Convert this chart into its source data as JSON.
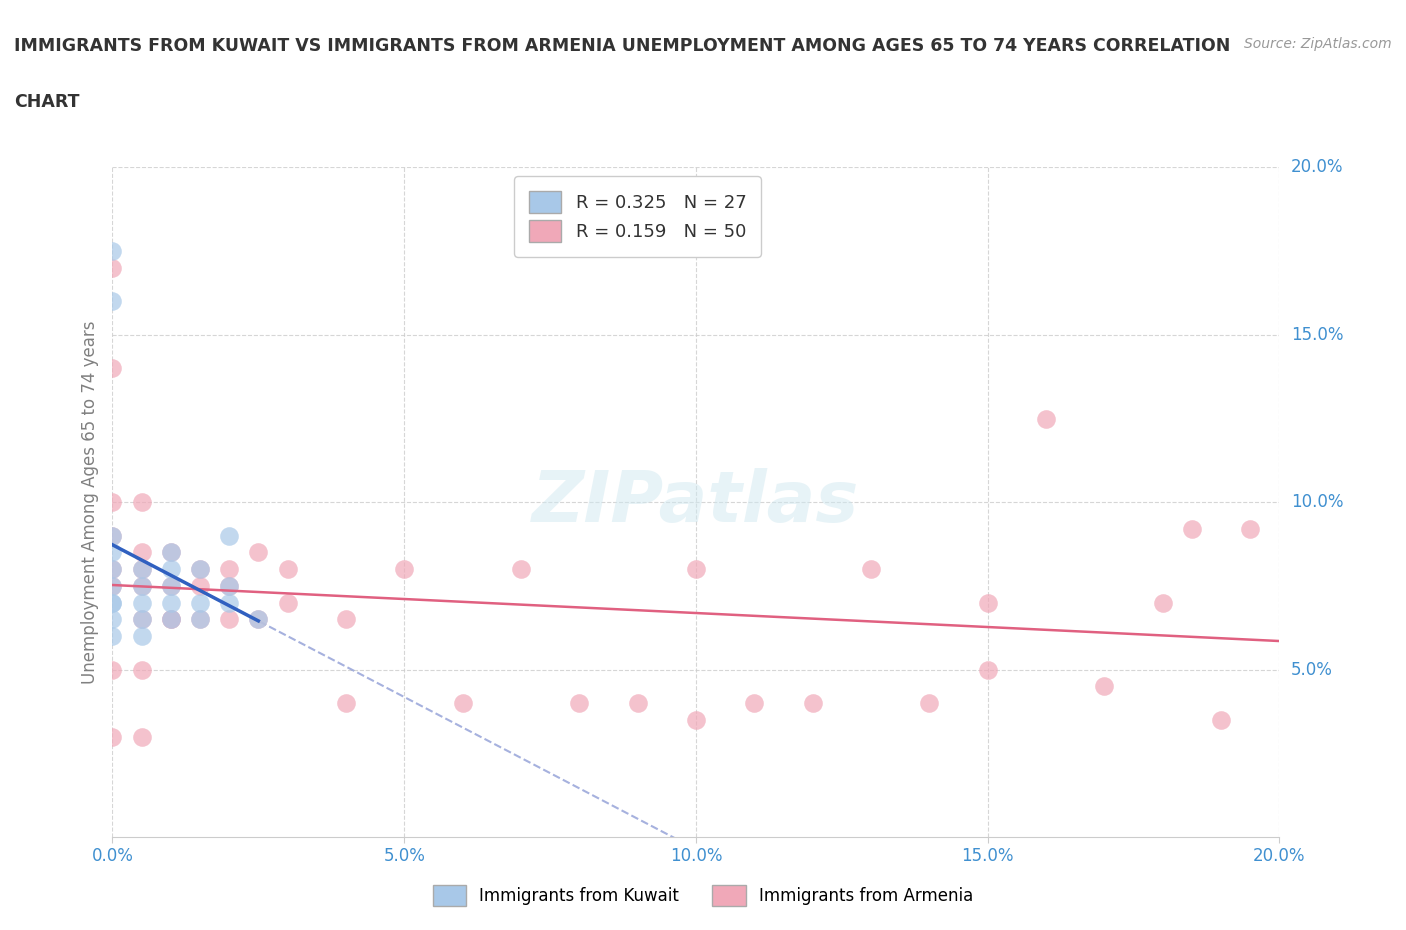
{
  "title_line1": "IMMIGRANTS FROM KUWAIT VS IMMIGRANTS FROM ARMENIA UNEMPLOYMENT AMONG AGES 65 TO 74 YEARS CORRELATION",
  "title_line2": "CHART",
  "source_text": "Source: ZipAtlas.com",
  "ylabel": "Unemployment Among Ages 65 to 74 years",
  "xlim": [
    0.0,
    0.2
  ],
  "ylim": [
    0.0,
    0.2
  ],
  "xticks": [
    0.0,
    0.05,
    0.1,
    0.15,
    0.2
  ],
  "yticks": [
    0.05,
    0.1,
    0.15,
    0.2
  ],
  "xticklabels": [
    "0.0%",
    "5.0%",
    "10.0%",
    "15.0%",
    "20.0%"
  ],
  "yticklabels": [
    "5.0%",
    "10.0%",
    "15.0%",
    "20.0%"
  ],
  "kuwait_color": "#a8c8e8",
  "kuwait_edge_color": "#a8c8e8",
  "armenia_color": "#f0a8b8",
  "armenia_edge_color": "#f0a8b8",
  "kuwait_trend_color": "#3060c0",
  "armenia_trend_color": "#e06080",
  "dashed_line_color": "#8090d0",
  "tick_color": "#4090d0",
  "ylabel_color": "#808080",
  "kuwait_R": 0.325,
  "kuwait_N": 27,
  "armenia_R": 0.159,
  "armenia_N": 50,
  "kuwait_label": "Immigrants from Kuwait",
  "armenia_label": "Immigrants from Armenia",
  "kuwait_x": [
    0.0,
    0.0,
    0.0,
    0.0,
    0.0,
    0.0,
    0.0,
    0.0,
    0.0,
    0.0,
    0.005,
    0.005,
    0.005,
    0.005,
    0.005,
    0.01,
    0.01,
    0.01,
    0.01,
    0.01,
    0.015,
    0.015,
    0.015,
    0.02,
    0.02,
    0.02,
    0.025
  ],
  "kuwait_y": [
    0.06,
    0.065,
    0.07,
    0.07,
    0.075,
    0.08,
    0.085,
    0.09,
    0.16,
    0.175,
    0.06,
    0.065,
    0.07,
    0.075,
    0.08,
    0.065,
    0.07,
    0.075,
    0.08,
    0.085,
    0.065,
    0.07,
    0.08,
    0.07,
    0.075,
    0.09,
    0.065
  ],
  "armenia_x": [
    0.0,
    0.0,
    0.0,
    0.0,
    0.0,
    0.0,
    0.005,
    0.005,
    0.005,
    0.005,
    0.01,
    0.01,
    0.01,
    0.015,
    0.015,
    0.02,
    0.02,
    0.025,
    0.025,
    0.03,
    0.03,
    0.04,
    0.04,
    0.05,
    0.06,
    0.07,
    0.08,
    0.09,
    0.1,
    0.1,
    0.11,
    0.12,
    0.13,
    0.14,
    0.15,
    0.15,
    0.16,
    0.17,
    0.18,
    0.185,
    0.19,
    0.195,
    0.0,
    0.0,
    0.005,
    0.005,
    0.005,
    0.01,
    0.015,
    0.02
  ],
  "armenia_y": [
    0.075,
    0.08,
    0.09,
    0.1,
    0.14,
    0.17,
    0.075,
    0.08,
    0.085,
    0.1,
    0.065,
    0.075,
    0.085,
    0.065,
    0.08,
    0.065,
    0.08,
    0.065,
    0.085,
    0.07,
    0.08,
    0.04,
    0.065,
    0.08,
    0.04,
    0.08,
    0.04,
    0.04,
    0.035,
    0.08,
    0.04,
    0.04,
    0.08,
    0.04,
    0.05,
    0.07,
    0.125,
    0.045,
    0.07,
    0.092,
    0.035,
    0.092,
    0.03,
    0.05,
    0.03,
    0.05,
    0.065,
    0.065,
    0.075,
    0.075
  ]
}
